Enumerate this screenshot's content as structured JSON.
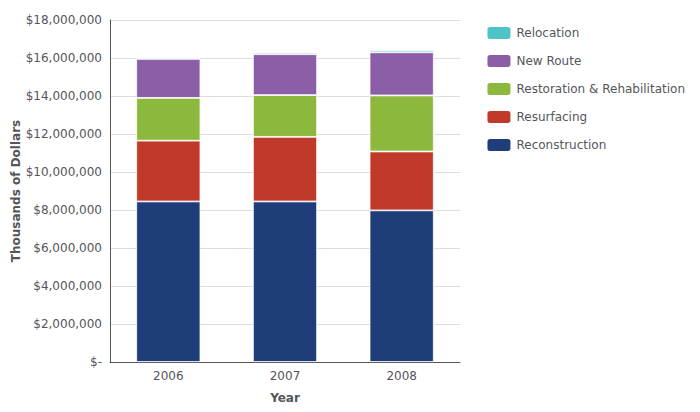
{
  "chart_data": {
    "type": "bar",
    "stacked": true,
    "categories": [
      "2006",
      "2007",
      "2008"
    ],
    "series": [
      {
        "name": "Reconstruction",
        "color": "#1F3D78",
        "values": [
          8450000,
          8450000,
          7980000
        ]
      },
      {
        "name": "Resurfacing",
        "color": "#C0392B",
        "values": [
          3200000,
          3400000,
          3100000
        ]
      },
      {
        "name": "Restoration & Rehabilitation",
        "color": "#8DB83E",
        "values": [
          2250000,
          2200000,
          2950000
        ]
      },
      {
        "name": "New Route",
        "color": "#8B5EA8",
        "values": [
          2050000,
          2150000,
          2270000
        ]
      },
      {
        "name": "Relocation",
        "color": "#4FC3C8",
        "values": [
          77010,
          90662,
          98939
        ]
      }
    ],
    "xlabel": "Year",
    "ylabel": "Thousands of Dollars",
    "ylim": [
      0,
      18000000
    ],
    "yticks": [
      {
        "value": 0,
        "label": "$-"
      },
      {
        "value": 2000000,
        "label": "$2,000,000"
      },
      {
        "value": 4000000,
        "label": "$4,000,000"
      },
      {
        "value": 6000000,
        "label": "$6,000,000"
      },
      {
        "value": 8000000,
        "label": "$8,000,000"
      },
      {
        "value": 10000000,
        "label": "$10,000,000"
      },
      {
        "value": 12000000,
        "label": "$12,000,000"
      },
      {
        "value": 14000000,
        "label": "$14,000,000"
      },
      {
        "value": 16000000,
        "label": "$16,000,000"
      },
      {
        "value": 18000000,
        "label": "$18,000,000"
      }
    ],
    "grid": true,
    "legend": "right"
  }
}
